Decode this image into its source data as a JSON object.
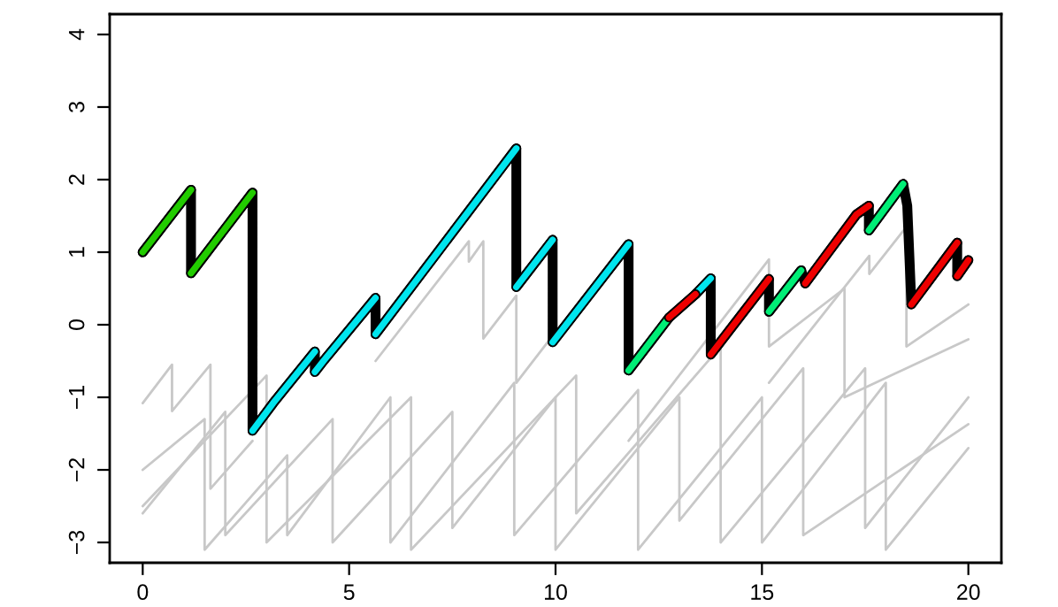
{
  "chart_data": {
    "type": "line",
    "xlim": [
      -0.8,
      20.8
    ],
    "ylim": [
      -3.28,
      4.28
    ],
    "xticks": [
      0,
      5,
      10,
      15,
      20
    ],
    "yticks": [
      -3,
      -2,
      -1,
      0,
      1,
      2,
      3,
      4
    ],
    "grid": false,
    "legend": false,
    "marker": "none",
    "line_style": "solid",
    "series": [
      {
        "color": "#c8c8c8",
        "x": [
          0,
          0.71,
          0.71,
          1.64,
          1.64,
          2.66
        ],
        "values": [
          -1.08,
          -0.55,
          -1.19,
          -0.55,
          -2.26,
          -1.6
        ]
      },
      {
        "color": "#c8c8c8",
        "x": [
          5.64,
          7.9,
          7.9,
          8.25,
          8.25,
          9.05,
          9.05,
          9.93
        ],
        "values": [
          -0.5,
          1.15,
          0.87,
          1.15,
          -0.19,
          0.4,
          -0.8,
          -0.15
        ]
      },
      {
        "color": "#c8c8c8",
        "x": [
          15.17,
          17.6,
          17.6,
          18.5,
          18.5,
          20
        ],
        "values": [
          -0.8,
          0.95,
          0.7,
          1.35,
          -0.3,
          0.28
        ]
      },
      {
        "color": "#c8c8c8",
        "x": [
          11.77,
          15.17,
          15.17,
          17.0,
          17.0,
          20
        ],
        "values": [
          -1.6,
          0.9,
          -0.3,
          0.5,
          -1.0,
          -0.2
        ]
      },
      {
        "color": "#c8c8c8",
        "x": [
          0,
          2.0,
          2.0,
          4.6,
          4.6,
          7.5,
          7.5,
          10,
          10,
          13,
          13,
          16,
          16,
          20
        ],
        "values": [
          -2.6,
          -1.2,
          -2.9,
          -1.3,
          -3.0,
          -1.2,
          -2.8,
          -1.0,
          -3.1,
          -1.0,
          -2.7,
          -0.6,
          -2.9,
          -1.37
        ]
      },
      {
        "color": "#c8c8c8",
        "x": [
          0,
          1.5,
          1.5,
          3.5,
          3.5,
          6,
          6,
          9,
          9,
          12,
          12,
          15,
          15,
          18,
          18,
          20
        ],
        "values": [
          -2.0,
          -1.3,
          -3.1,
          -1.8,
          -2.9,
          -1.0,
          -3.0,
          -0.8,
          -2.9,
          -0.9,
          -3.1,
          -1.0,
          -3.0,
          -0.8,
          -3.1,
          -1.7
        ]
      },
      {
        "color": "#c8c8c8",
        "x": [
          0,
          3,
          3,
          6.5,
          6.5,
          10.5,
          10.5,
          14,
          14,
          17.5,
          17.5,
          20
        ],
        "values": [
          -2.5,
          -0.7,
          -3.0,
          -1.0,
          -3.1,
          -0.7,
          -2.6,
          -0.3,
          -3.0,
          -0.6,
          -2.8,
          -1.0
        ]
      },
      {
        "color": "#000000",
        "x": [
          0,
          1.17,
          1.17,
          2.66,
          2.66,
          3.16,
          4.17,
          4.17,
          4.39,
          5.64,
          5.64,
          9.05,
          9.05,
          9.93,
          9.93,
          11.77,
          11.77,
          12.75,
          13.39,
          13.76,
          13.76,
          15.17,
          15.17,
          15.95,
          16.05,
          17.29,
          17.59,
          17.59,
          18.42,
          18.52,
          18.62,
          19.73,
          19.73,
          20
        ],
        "values": [
          1,
          1.86,
          0.71,
          1.82,
          -1.46,
          -1.08,
          -0.37,
          -0.65,
          -0.49,
          0.37,
          -0.13,
          2.43,
          0.52,
          1.17,
          -0.24,
          1.11,
          -0.63,
          0.1,
          0.42,
          0.64,
          -0.41,
          0.63,
          0.18,
          0.75,
          0.57,
          1.52,
          1.64,
          1.3,
          1.94,
          1.64,
          0.28,
          1.13,
          0.67,
          0.89
        ]
      },
      {
        "color": "#22cc00",
        "x": [
          0,
          1.17
        ],
        "values": [
          1,
          1.86
        ]
      },
      {
        "color": "#22cc00",
        "x": [
          1.17,
          2.66
        ],
        "values": [
          0.71,
          1.82
        ]
      },
      {
        "color": "#00e5ee",
        "x": [
          2.66,
          3.16,
          4.17
        ],
        "values": [
          -1.46,
          -1.08,
          -0.37
        ]
      },
      {
        "color": "#00e5ee",
        "x": [
          4.17,
          4.39,
          5.64
        ],
        "values": [
          -0.65,
          -0.49,
          0.37
        ]
      },
      {
        "color": "#00e5ee",
        "x": [
          5.64,
          9.05
        ],
        "values": [
          -0.13,
          2.43
        ]
      },
      {
        "color": "#00e5ee",
        "x": [
          9.05,
          9.93
        ],
        "values": [
          0.52,
          1.17
        ]
      },
      {
        "color": "#00e5ee",
        "x": [
          9.93,
          11.77
        ],
        "values": [
          -0.24,
          1.11
        ]
      },
      {
        "color": "#00e5ee",
        "x": [
          13.39,
          13.76
        ],
        "values": [
          0.42,
          0.64
        ]
      },
      {
        "color": "#00ee76",
        "x": [
          11.77,
          12.75
        ],
        "values": [
          -0.63,
          0.1
        ]
      },
      {
        "color": "#00ee76",
        "x": [
          15.17,
          15.95
        ],
        "values": [
          0.18,
          0.75
        ]
      },
      {
        "color": "#00ee76",
        "x": [
          17.59,
          18.42
        ],
        "values": [
          1.3,
          1.94
        ]
      },
      {
        "color": "#ee0000",
        "x": [
          12.75,
          13.39
        ],
        "values": [
          0.1,
          0.42
        ]
      },
      {
        "color": "#ee0000",
        "x": [
          13.76,
          15.17
        ],
        "values": [
          -0.41,
          0.63
        ]
      },
      {
        "color": "#ee0000",
        "x": [
          16.05,
          17.29,
          17.59
        ],
        "values": [
          0.57,
          1.52,
          1.64
        ]
      },
      {
        "color": "#ee0000",
        "x": [
          18.62,
          19.73
        ],
        "values": [
          0.28,
          1.13
        ]
      },
      {
        "color": "#ee0000",
        "x": [
          19.73,
          20
        ],
        "values": [
          0.67,
          0.89
        ]
      }
    ]
  }
}
